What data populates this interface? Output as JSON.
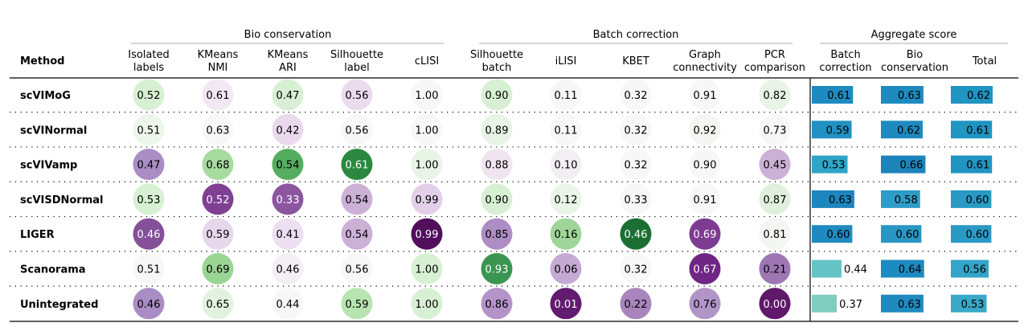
{
  "chart_data": {
    "type": "table",
    "method_header": "Method",
    "groups": [
      {
        "label": "Bio conservation",
        "columns": [
          0,
          1,
          2,
          3,
          4
        ]
      },
      {
        "label": "Batch correction",
        "columns": [
          5,
          6,
          7,
          8,
          9
        ]
      },
      {
        "label": "Aggregate score",
        "columns": [
          10,
          11,
          12
        ]
      }
    ],
    "columns": [
      {
        "label": [
          "Isolated",
          "labels"
        ],
        "kind": "circle",
        "group": "bio"
      },
      {
        "label": [
          "KMeans",
          "NMI"
        ],
        "kind": "circle",
        "group": "bio"
      },
      {
        "label": [
          "KMeans",
          "ARI"
        ],
        "kind": "circle",
        "group": "bio"
      },
      {
        "label": [
          "Silhouette",
          "label"
        ],
        "kind": "circle",
        "group": "bio"
      },
      {
        "label": [
          "cLISI"
        ],
        "kind": "circle",
        "group": "bio"
      },
      {
        "label": [
          "Silhouette",
          "batch"
        ],
        "kind": "circle",
        "group": "batch"
      },
      {
        "label": [
          "iLISI"
        ],
        "kind": "circle",
        "group": "batch"
      },
      {
        "label": [
          "KBET"
        ],
        "kind": "circle",
        "group": "batch"
      },
      {
        "label": [
          "Graph",
          "connectivity"
        ],
        "kind": "circle",
        "group": "batch"
      },
      {
        "label": [
          "PCR",
          "comparison"
        ],
        "kind": "circle",
        "group": "batch"
      },
      {
        "label": [
          "Batch",
          "correction"
        ],
        "kind": "bar",
        "group": "aggregate"
      },
      {
        "label": [
          "Bio",
          "conservation"
        ],
        "kind": "bar",
        "group": "aggregate"
      },
      {
        "label": [
          "Total"
        ],
        "kind": "bar",
        "group": "aggregate"
      }
    ],
    "rows": [
      {
        "method": "scVIMoG",
        "values": [
          0.52,
          0.61,
          0.47,
          0.56,
          1.0,
          0.9,
          0.11,
          0.32,
          0.91,
          0.82,
          0.61,
          0.63,
          0.62
        ]
      },
      {
        "method": "scVINormal",
        "values": [
          0.51,
          0.63,
          0.42,
          0.56,
          1.0,
          0.89,
          0.11,
          0.32,
          0.92,
          0.73,
          0.59,
          0.62,
          0.61
        ]
      },
      {
        "method": "scVIVamp",
        "values": [
          0.47,
          0.68,
          0.54,
          0.61,
          1.0,
          0.88,
          0.1,
          0.32,
          0.9,
          0.45,
          0.53,
          0.66,
          0.61
        ]
      },
      {
        "method": "scVISDNormal",
        "values": [
          0.53,
          0.52,
          0.33,
          0.54,
          0.99,
          0.9,
          0.12,
          0.33,
          0.91,
          0.87,
          0.63,
          0.58,
          0.6
        ]
      },
      {
        "method": "LIGER",
        "values": [
          0.46,
          0.59,
          0.41,
          0.54,
          0.99,
          0.85,
          0.16,
          0.46,
          0.69,
          0.81,
          0.6,
          0.6,
          0.6
        ]
      },
      {
        "method": "Scanorama",
        "values": [
          0.51,
          0.69,
          0.46,
          0.56,
          1.0,
          0.93,
          0.06,
          0.32,
          0.67,
          0.21,
          0.44,
          0.64,
          0.56
        ]
      },
      {
        "method": "Unintegrated",
        "values": [
          0.46,
          0.65,
          0.44,
          0.59,
          1.0,
          0.86,
          0.01,
          0.22,
          0.76,
          0.0,
          0.37,
          0.63,
          0.53
        ]
      }
    ],
    "circle_colors": [
      [
        "#d7f0d3",
        "#f1e8f3",
        "#d7f0d3",
        "#eadbee",
        "#f7f7f7",
        "#d7f0d3",
        "#f7f7f7",
        "#f7f7f7",
        "#f7f7f7",
        "#e8f4e6"
      ],
      [
        "#eef6ec",
        "#f7f7f7",
        "#ead9ed",
        "#f7f7f7",
        "#f7f7f7",
        "#e8f4e6",
        "#f7f7f7",
        "#f7f7f7",
        "#f3f6f2",
        "#f7f7f7"
      ],
      [
        "#a98dc4",
        "#a8dba0",
        "#55ae5f",
        "#2b8840",
        "#e8f4e6",
        "#f1e4f1",
        "#f3eef4",
        "#f7f7f7",
        "#f7f7f7",
        "#cbb1d6"
      ],
      [
        "#d7f0d3",
        "#7f3f92",
        "#8c55a0",
        "#cbb1d6",
        "#e3d0e8",
        "#d7f0d3",
        "#eaf5e8",
        "#f7f7f7",
        "#f7f7f7",
        "#dff1dc"
      ],
      [
        "#84509a",
        "#e6d7ec",
        "#ecdff1",
        "#cbb1d6",
        "#510f5c",
        "#ad8dc3",
        "#9fd598",
        "#1b6f35",
        "#7d3b91",
        "#f3f6f2"
      ],
      [
        "#f7f7f7",
        "#9ad594",
        "#f4eef5",
        "#f7f7f7",
        "#d7f0d3",
        "#3a9550",
        "#c5aad3",
        "#f7f7f7",
        "#6f2684",
        "#9d76b3"
      ],
      [
        "#a98dc4",
        "#e1f3de",
        "#f7f7f7",
        "#b8e4b2",
        "#d7f0d3",
        "#b493c8",
        "#611b6f",
        "#a985bd",
        "#b195c6",
        "#5f186a"
      ]
    ],
    "bar_colors": [
      [
        "#1f8ac0",
        "#1f8ac0",
        "#2094c2"
      ],
      [
        "#2191c2",
        "#1f8ac0",
        "#2094c2"
      ],
      [
        "#2ea4c7",
        "#1c83bb",
        "#2094c2"
      ],
      [
        "#1d86be",
        "#2d9cc7",
        "#2a9ac5"
      ],
      [
        "#1f8ac0",
        "#2a96c4",
        "#2a9ac5"
      ],
      [
        "#67c4c6",
        "#1d8ac1",
        "#34a4c8"
      ],
      [
        "#7fcdbf",
        "#1f8ac0",
        "#3aa9c8"
      ]
    ],
    "light_text_threshold": "dark fills use white text"
  }
}
